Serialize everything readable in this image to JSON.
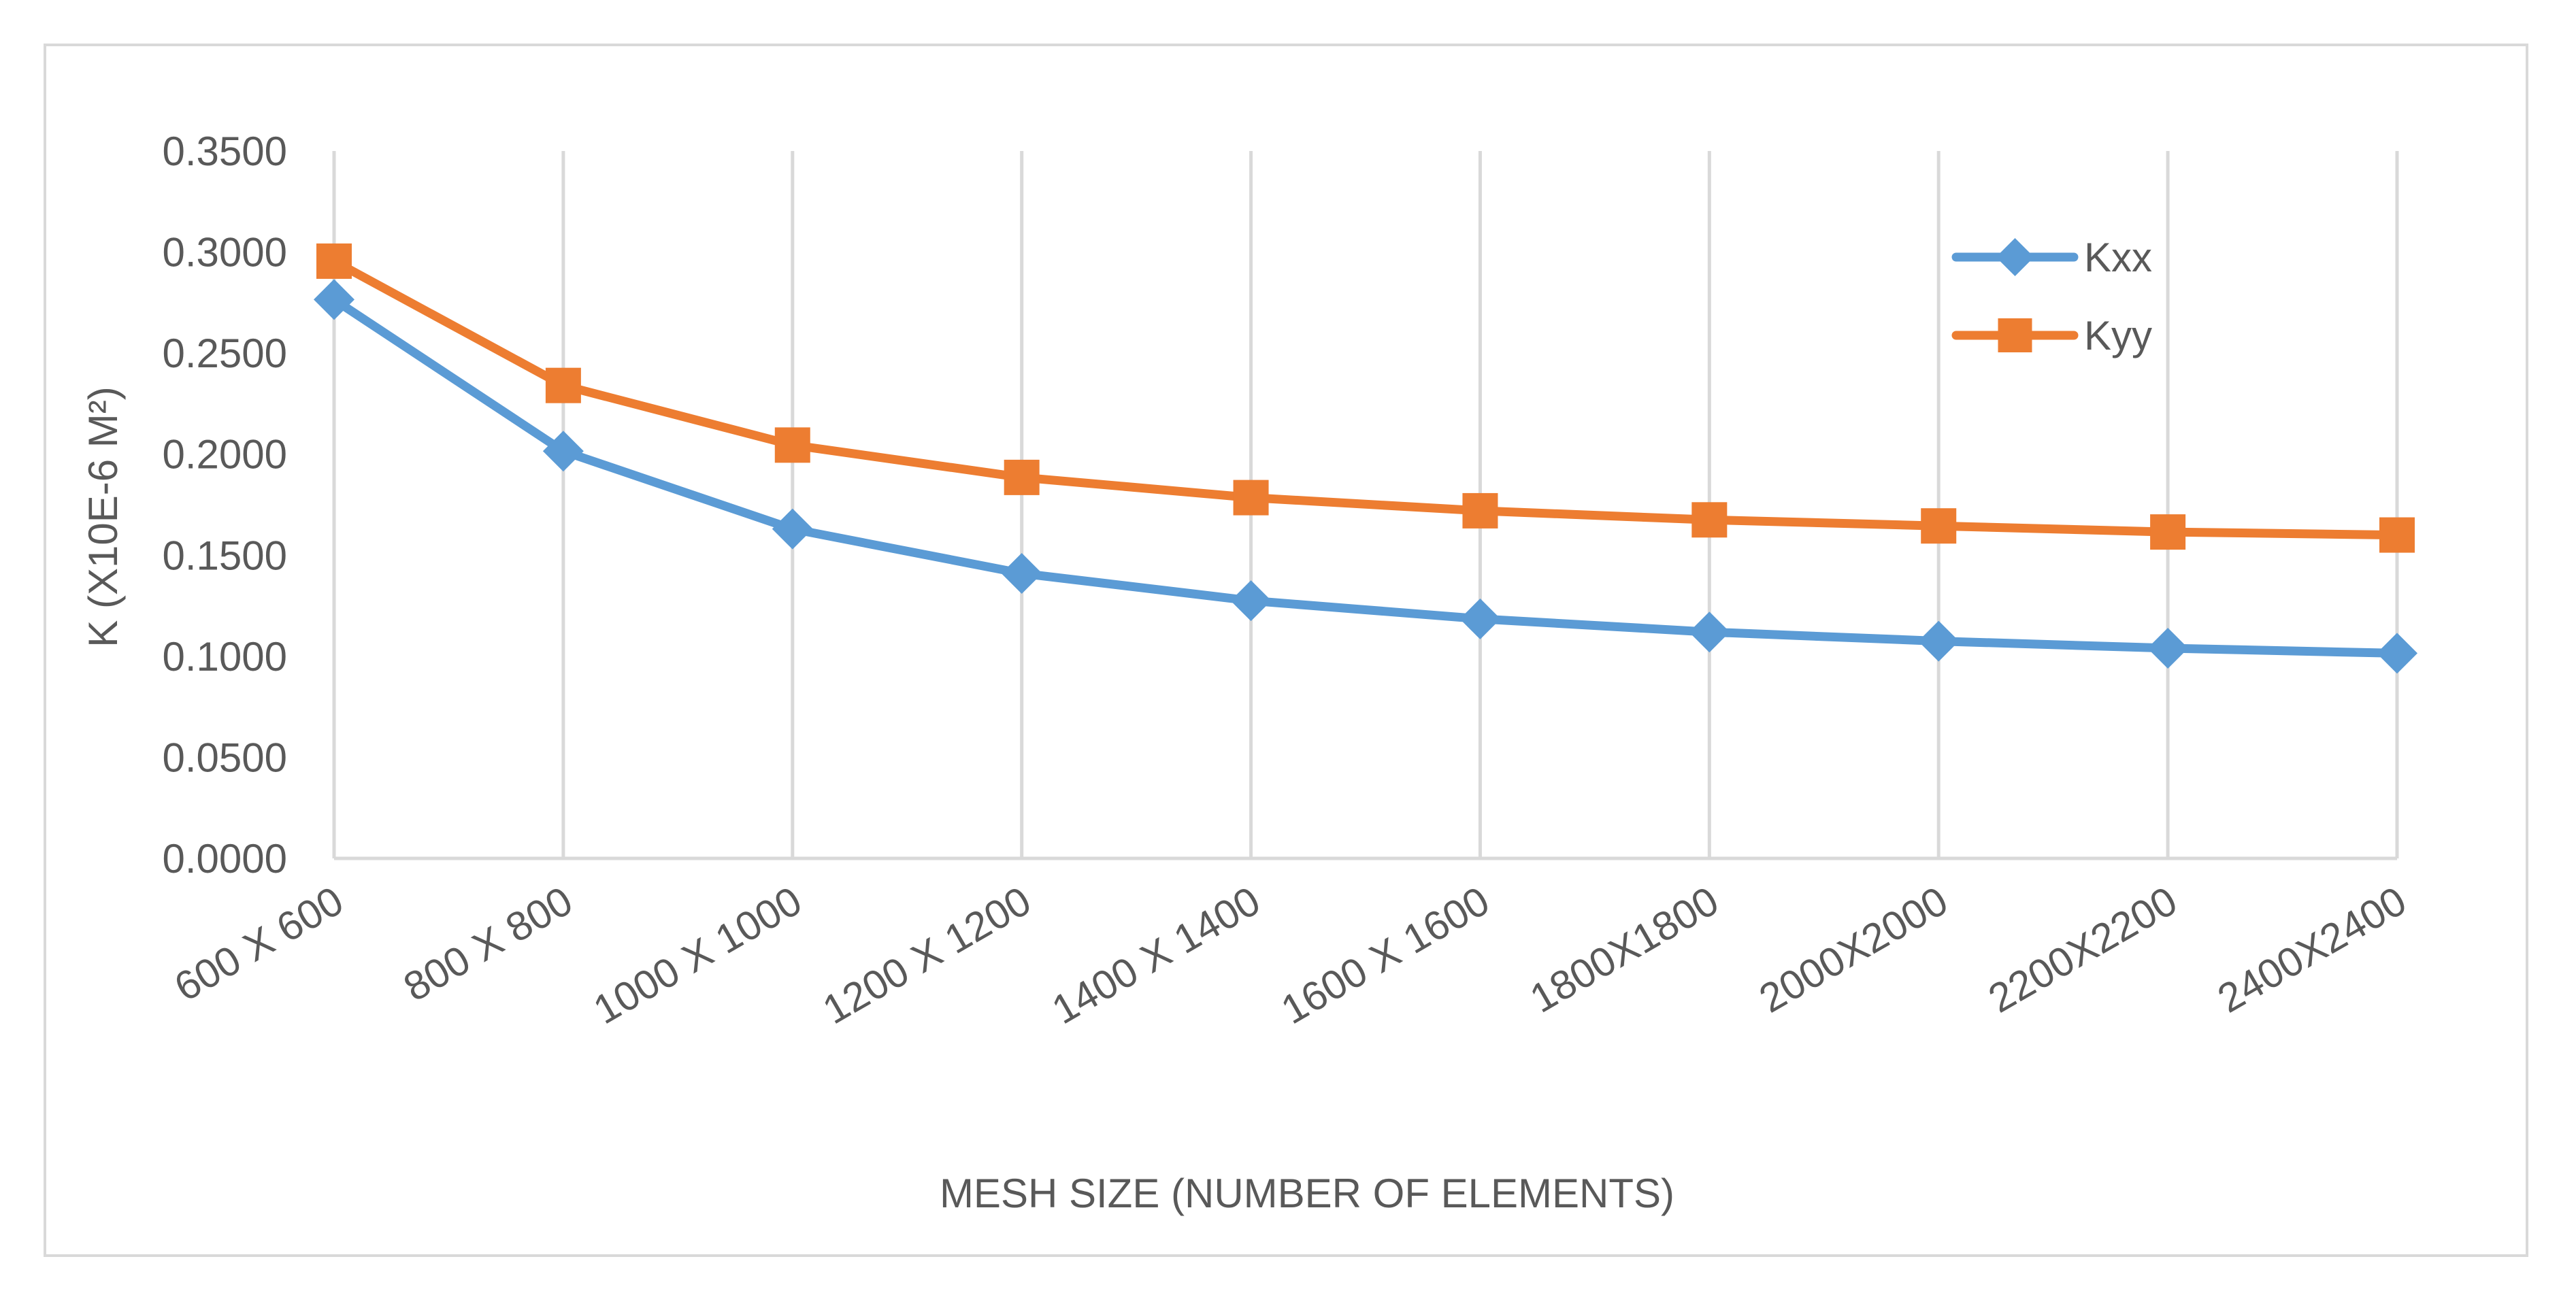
{
  "chart_data": {
    "type": "line",
    "title": "",
    "xlabel": "MESH SIZE (NUMBER OF ELEMENTS)",
    "ylabel": "K (X10E-6 M²)",
    "ylim": [
      0,
      0.35
    ],
    "yticks": [
      "0.0000",
      "0.0500",
      "0.1000",
      "0.1500",
      "0.2000",
      "0.2500",
      "0.3000",
      "0.3500"
    ],
    "categories": [
      "600 X 600",
      "800 X 800",
      "1000 X 1000",
      "1200 X 1200",
      "1400 X 1400",
      "1600 X 1600",
      "1800X1800",
      "2000X2000",
      "2200X2200",
      "2400X2400"
    ],
    "grid": "vertical",
    "legend": "top-right",
    "series": [
      {
        "name": "Kxx",
        "color": "#5B9BD5",
        "marker": "diamond",
        "values": [
          0.2765,
          0.2015,
          0.163,
          0.141,
          0.1275,
          0.1185,
          0.112,
          0.1075,
          0.104,
          0.1015
        ]
      },
      {
        "name": "Kyy",
        "color": "#ED7D31",
        "marker": "square",
        "values": [
          0.2955,
          0.234,
          0.2045,
          0.1885,
          0.1785,
          0.172,
          0.1675,
          0.1645,
          0.1615,
          0.16
        ]
      }
    ]
  }
}
